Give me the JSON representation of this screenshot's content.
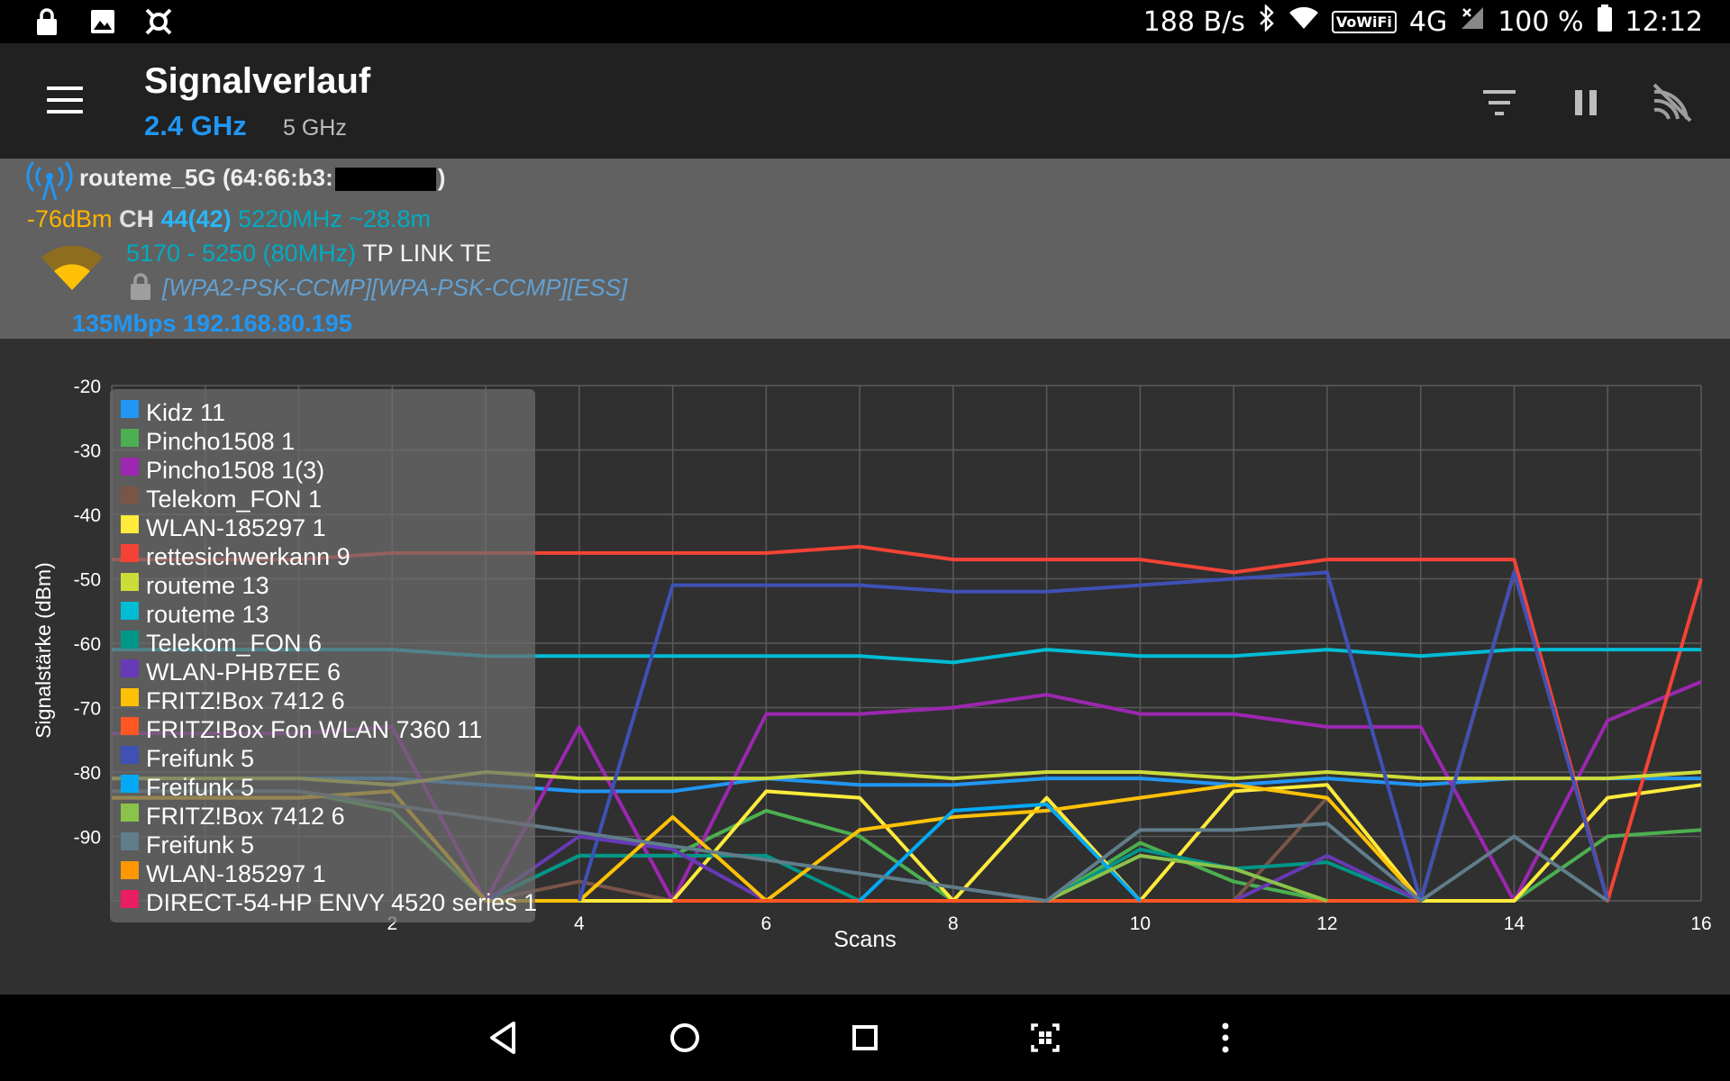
{
  "status_bar": {
    "icons_left": [
      "lock-icon",
      "image-icon",
      "app-icon"
    ],
    "net_speed": "188 B/s",
    "vowifi": "VoWiFi",
    "network_type": "4G",
    "battery": "100 %",
    "time": "12:12"
  },
  "app_bar": {
    "title": "Signalverlauf",
    "tabs": [
      {
        "label": "2.4 GHz",
        "active": true
      },
      {
        "label": "5 GHz",
        "active": false
      }
    ],
    "actions": [
      "filter-icon",
      "pause-icon",
      "wifi-scan-icon"
    ]
  },
  "connection": {
    "ssid": "routeme_5G",
    "mac_prefix": "(64:66:b3:",
    "mac_suffix": ")",
    "level": "-76dBm",
    "ch_label": "CH",
    "channel": "44(42)",
    "frequency": "5220MHz",
    "distance": "~28.8m",
    "range": "5170 - 5250 (80MHz)",
    "vendor": "TP LINK TE",
    "security": "[WPA2-PSK-CCMP][WPA-PSK-CCMP][ESS]",
    "link": "135Mbps 192.168.80.195",
    "colors": {
      "level": "#ffb300",
      "frequency": "#00acc1",
      "link": "#2196f3"
    }
  },
  "chart_data": {
    "type": "line",
    "xlabel": "Scans",
    "ylabel": "Signalstärke (dBm)",
    "ylim": [
      -100,
      -20
    ],
    "xlim": [
      -1,
      16
    ],
    "y_ticks": [
      -20,
      -30,
      -40,
      -50,
      -60,
      -70,
      -80,
      -90
    ],
    "x_ticks": [
      2,
      4,
      6,
      8,
      10,
      12,
      14,
      16
    ],
    "x_tick_labels": [
      "2",
      "4",
      "6",
      "8",
      "10",
      "12",
      "14",
      "16"
    ],
    "grid": true,
    "legend_position": "top-left",
    "series": [
      {
        "name": "Kidz 11",
        "color": "#2196f3",
        "x": [
          -1,
          0,
          1,
          2,
          3,
          4,
          5,
          6,
          7,
          8,
          9,
          10,
          11,
          12,
          13,
          14,
          15,
          16
        ],
        "y": [
          -81,
          -81,
          -81,
          -81,
          -82,
          -83,
          -83,
          -81,
          -82,
          -82,
          -81,
          -81,
          -82,
          -81,
          -82,
          -81,
          -81,
          -81
        ]
      },
      {
        "name": "Pincho1508 1",
        "color": "#4caf50",
        "x": [
          1,
          2,
          3,
          4,
          5,
          6,
          7,
          8,
          9,
          10,
          11,
          12,
          13,
          14,
          15,
          16
        ],
        "y": [
          -83,
          -86,
          -100,
          -93,
          -93,
          -86,
          -90,
          -100,
          -100,
          -91,
          -97,
          -100,
          -100,
          -100,
          -90,
          -89
        ]
      },
      {
        "name": "Pincho1508 1(3)",
        "color": "#9c27b0",
        "x": [
          -1,
          0,
          1,
          2,
          3,
          4,
          5,
          6,
          7,
          8,
          9,
          10,
          11,
          12,
          13,
          14,
          15,
          16
        ],
        "y": [
          -74,
          -74,
          -74,
          -73,
          -100,
          -73,
          -100,
          -71,
          -71,
          -70,
          -68,
          -71,
          -71,
          -73,
          -73,
          -100,
          -72,
          -66
        ]
      },
      {
        "name": "Telekom_FON 1",
        "color": "#795548",
        "x": [
          3,
          4,
          5,
          6,
          7,
          8,
          9,
          10,
          11,
          12,
          13
        ],
        "y": [
          -100,
          -97,
          -100,
          -100,
          -100,
          -100,
          -100,
          -100,
          -100,
          -84,
          -100
        ]
      },
      {
        "name": "WLAN-185297 1",
        "color": "#ffeb3b",
        "x": [
          -1,
          0,
          1,
          2,
          3,
          4,
          5,
          6,
          7,
          8,
          9,
          10,
          11,
          12,
          13,
          14,
          15,
          16
        ],
        "y": [
          -84,
          -84,
          -84,
          -83,
          -100,
          -100,
          -100,
          -83,
          -84,
          -100,
          -84,
          -100,
          -83,
          -82,
          -100,
          -100,
          -84,
          -82
        ]
      },
      {
        "name": "rettesichwerkann 9",
        "color": "#f44336",
        "x": [
          -1,
          0,
          1,
          2,
          3,
          4,
          5,
          6,
          7,
          8,
          9,
          10,
          11,
          12,
          13,
          14,
          15,
          16
        ],
        "y": [
          -47,
          -47,
          -47,
          -46,
          -46,
          -46,
          -46,
          -46,
          -45,
          -47,
          -47,
          -47,
          -49,
          -47,
          -47,
          -47,
          -100,
          -50
        ]
      },
      {
        "name": "routeme 13",
        "color": "#cddc39",
        "x": [
          -1,
          0,
          1,
          2,
          3,
          4,
          5,
          6,
          7,
          8,
          9,
          10,
          11,
          12,
          13,
          14,
          15,
          16
        ],
        "y": [
          -81,
          -81,
          -81,
          -82,
          -80,
          -81,
          -81,
          -81,
          -80,
          -81,
          -80,
          -80,
          -81,
          -80,
          -81,
          -81,
          -81,
          -80
        ]
      },
      {
        "name": "routeme 13",
        "color": "#00bcd4",
        "x": [
          -1,
          0,
          1,
          2,
          3,
          4,
          5,
          6,
          7,
          8,
          9,
          10,
          11,
          12,
          13,
          14,
          15,
          16
        ],
        "y": [
          -61,
          -61,
          -61,
          -61,
          -62,
          -62,
          -62,
          -62,
          -62,
          -63,
          -61,
          -62,
          -62,
          -61,
          -62,
          -61,
          -61,
          -61
        ]
      },
      {
        "name": "Telekom_FON 6",
        "color": "#009688",
        "x": [
          3,
          4,
          5,
          6,
          7,
          8,
          9,
          10,
          11,
          12,
          13
        ],
        "y": [
          -100,
          -93,
          -93,
          -93,
          -100,
          -100,
          -100,
          -92,
          -95,
          -94,
          -100
        ]
      },
      {
        "name": "WLAN-PHB7EE 6",
        "color": "#673ab7",
        "x": [
          3,
          4,
          5,
          6,
          7,
          8,
          9,
          10,
          11,
          12,
          13
        ],
        "y": [
          -100,
          -90,
          -92,
          -100,
          -100,
          -100,
          -100,
          -100,
          -100,
          -93,
          -100
        ]
      },
      {
        "name": "FRITZ!Box 7412 6",
        "color": "#ffc107",
        "x": [
          -1,
          0,
          1,
          2,
          3,
          4,
          5,
          6,
          7,
          8,
          9,
          10,
          11,
          12,
          13
        ],
        "y": [
          -84,
          -84,
          -84,
          -83,
          -100,
          -100,
          -87,
          -100,
          -89,
          -87,
          -86,
          -84,
          -82,
          -84,
          -100
        ]
      },
      {
        "name": "FRITZ!Box Fon WLAN 7360 11",
        "color": "#ff5722",
        "x": [
          5,
          6,
          7,
          8,
          9,
          10,
          11,
          12,
          13,
          14,
          15
        ],
        "y": [
          -100,
          -100,
          -100,
          -100,
          -100,
          -100,
          -100,
          -100,
          -100,
          -49,
          -100
        ]
      },
      {
        "name": "Freifunk 5",
        "color": "#3f51b5",
        "x": [
          4,
          5,
          6,
          7,
          8,
          9,
          10,
          11,
          12,
          13,
          14,
          15
        ],
        "y": [
          -100,
          -51,
          -51,
          -51,
          -52,
          -52,
          -51,
          -50,
          -49,
          -100,
          -49,
          -100
        ]
      },
      {
        "name": "Freifunk 5",
        "color": "#03a9f4",
        "x": [
          7,
          8,
          9,
          10
        ],
        "y": [
          -100,
          -86,
          -85,
          -100
        ]
      },
      {
        "name": "FRITZ!Box 7412 6",
        "color": "#8bc34a",
        "x": [
          9,
          10,
          11,
          12
        ],
        "y": [
          -100,
          -93,
          -95,
          -100
        ]
      },
      {
        "name": "Freifunk 5",
        "color": "#607d8b",
        "x": [
          -1,
          0,
          1,
          9,
          10,
          11,
          12,
          13,
          14,
          15
        ],
        "y": [
          -83,
          -83,
          -83,
          -100,
          -89,
          -89,
          -88,
          -100,
          -90,
          -100
        ]
      },
      {
        "name": "WLAN-185297 1",
        "color": "#ff9800",
        "x": [],
        "y": []
      },
      {
        "name": "DIRECT-54-HP ENVY 4520 series 1",
        "color": "#e91e63",
        "x": [],
        "y": []
      }
    ]
  },
  "nav_bar": {
    "buttons": [
      "back-icon",
      "home-icon",
      "recents-icon",
      "screenshot-icon",
      "more-icon"
    ]
  }
}
